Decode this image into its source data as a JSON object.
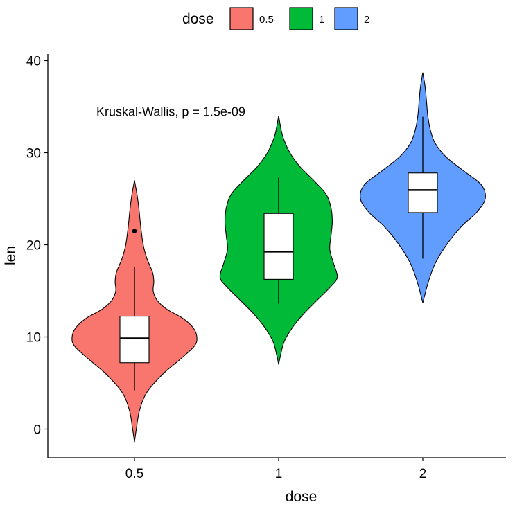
{
  "chart_data": {
    "type": "violin",
    "title": "",
    "xlabel": "dose",
    "ylabel": "len",
    "ylim": [
      -3,
      41
    ],
    "yticks": [
      0,
      10,
      20,
      30,
      40
    ],
    "categories": [
      "0.5",
      "1",
      "2"
    ],
    "legend": {
      "title": "dose",
      "position": "top",
      "entries": [
        {
          "label": "0.5",
          "color": "#F8766D"
        },
        {
          "label": "1",
          "color": "#00BA38"
        },
        {
          "label": "2",
          "color": "#619CFF"
        }
      ]
    },
    "annotation": "Kruskal-Wallis, p = 1.5e-09",
    "annotation_y": 34.5,
    "series": [
      {
        "name": "0.5",
        "color": "#F8766D",
        "box": {
          "q1": 7.2,
          "median": 9.85,
          "q3": 12.25,
          "whisker_low": 4.2,
          "whisker_high": 17.6
        },
        "outliers": [
          21.5
        ],
        "violin": [
          [
            -1.4,
            0.0
          ],
          [
            0.0,
            0.03
          ],
          [
            2.0,
            0.08
          ],
          [
            4.0,
            0.2
          ],
          [
            6.0,
            0.46
          ],
          [
            7.5,
            0.72
          ],
          [
            9.0,
            0.96
          ],
          [
            10.0,
            1.0
          ],
          [
            11.0,
            0.94
          ],
          [
            12.0,
            0.78
          ],
          [
            13.0,
            0.52
          ],
          [
            14.0,
            0.36
          ],
          [
            15.0,
            0.3
          ],
          [
            16.0,
            0.31
          ],
          [
            17.0,
            0.29
          ],
          [
            18.5,
            0.2
          ],
          [
            20.0,
            0.14
          ],
          [
            22.0,
            0.1
          ],
          [
            24.0,
            0.07
          ],
          [
            25.5,
            0.04
          ],
          [
            27.0,
            0.0
          ]
        ]
      },
      {
        "name": "1",
        "color": "#00BA38",
        "box": {
          "q1": 16.25,
          "median": 19.25,
          "q3": 23.4,
          "whisker_low": 13.6,
          "whisker_high": 27.3
        },
        "outliers": [],
        "violin": [
          [
            7.0,
            0.0
          ],
          [
            8.0,
            0.03
          ],
          [
            9.5,
            0.09
          ],
          [
            11.0,
            0.22
          ],
          [
            12.5,
            0.4
          ],
          [
            14.0,
            0.62
          ],
          [
            15.5,
            0.84
          ],
          [
            16.5,
            0.94
          ],
          [
            18.0,
            0.88
          ],
          [
            19.5,
            0.82
          ],
          [
            21.0,
            0.84
          ],
          [
            22.5,
            0.86
          ],
          [
            24.0,
            0.84
          ],
          [
            25.5,
            0.76
          ],
          [
            27.0,
            0.56
          ],
          [
            28.5,
            0.34
          ],
          [
            30.0,
            0.18
          ],
          [
            31.5,
            0.08
          ],
          [
            32.5,
            0.04
          ],
          [
            34.0,
            0.0
          ]
        ]
      },
      {
        "name": "2",
        "color": "#619CFF",
        "box": {
          "q1": 23.5,
          "median": 25.95,
          "q3": 27.8,
          "whisker_low": 18.5,
          "whisker_high": 33.9
        },
        "outliers": [],
        "violin": [
          [
            13.7,
            0.0
          ],
          [
            14.5,
            0.03
          ],
          [
            16.0,
            0.09
          ],
          [
            18.0,
            0.2
          ],
          [
            20.0,
            0.38
          ],
          [
            22.0,
            0.62
          ],
          [
            23.5,
            0.86
          ],
          [
            25.0,
            1.0
          ],
          [
            26.5,
            0.94
          ],
          [
            28.0,
            0.66
          ],
          [
            29.5,
            0.38
          ],
          [
            31.0,
            0.2
          ],
          [
            32.5,
            0.12
          ],
          [
            34.0,
            0.08
          ],
          [
            35.5,
            0.06
          ],
          [
            37.0,
            0.04
          ],
          [
            38.7,
            0.0
          ]
        ]
      }
    ]
  }
}
